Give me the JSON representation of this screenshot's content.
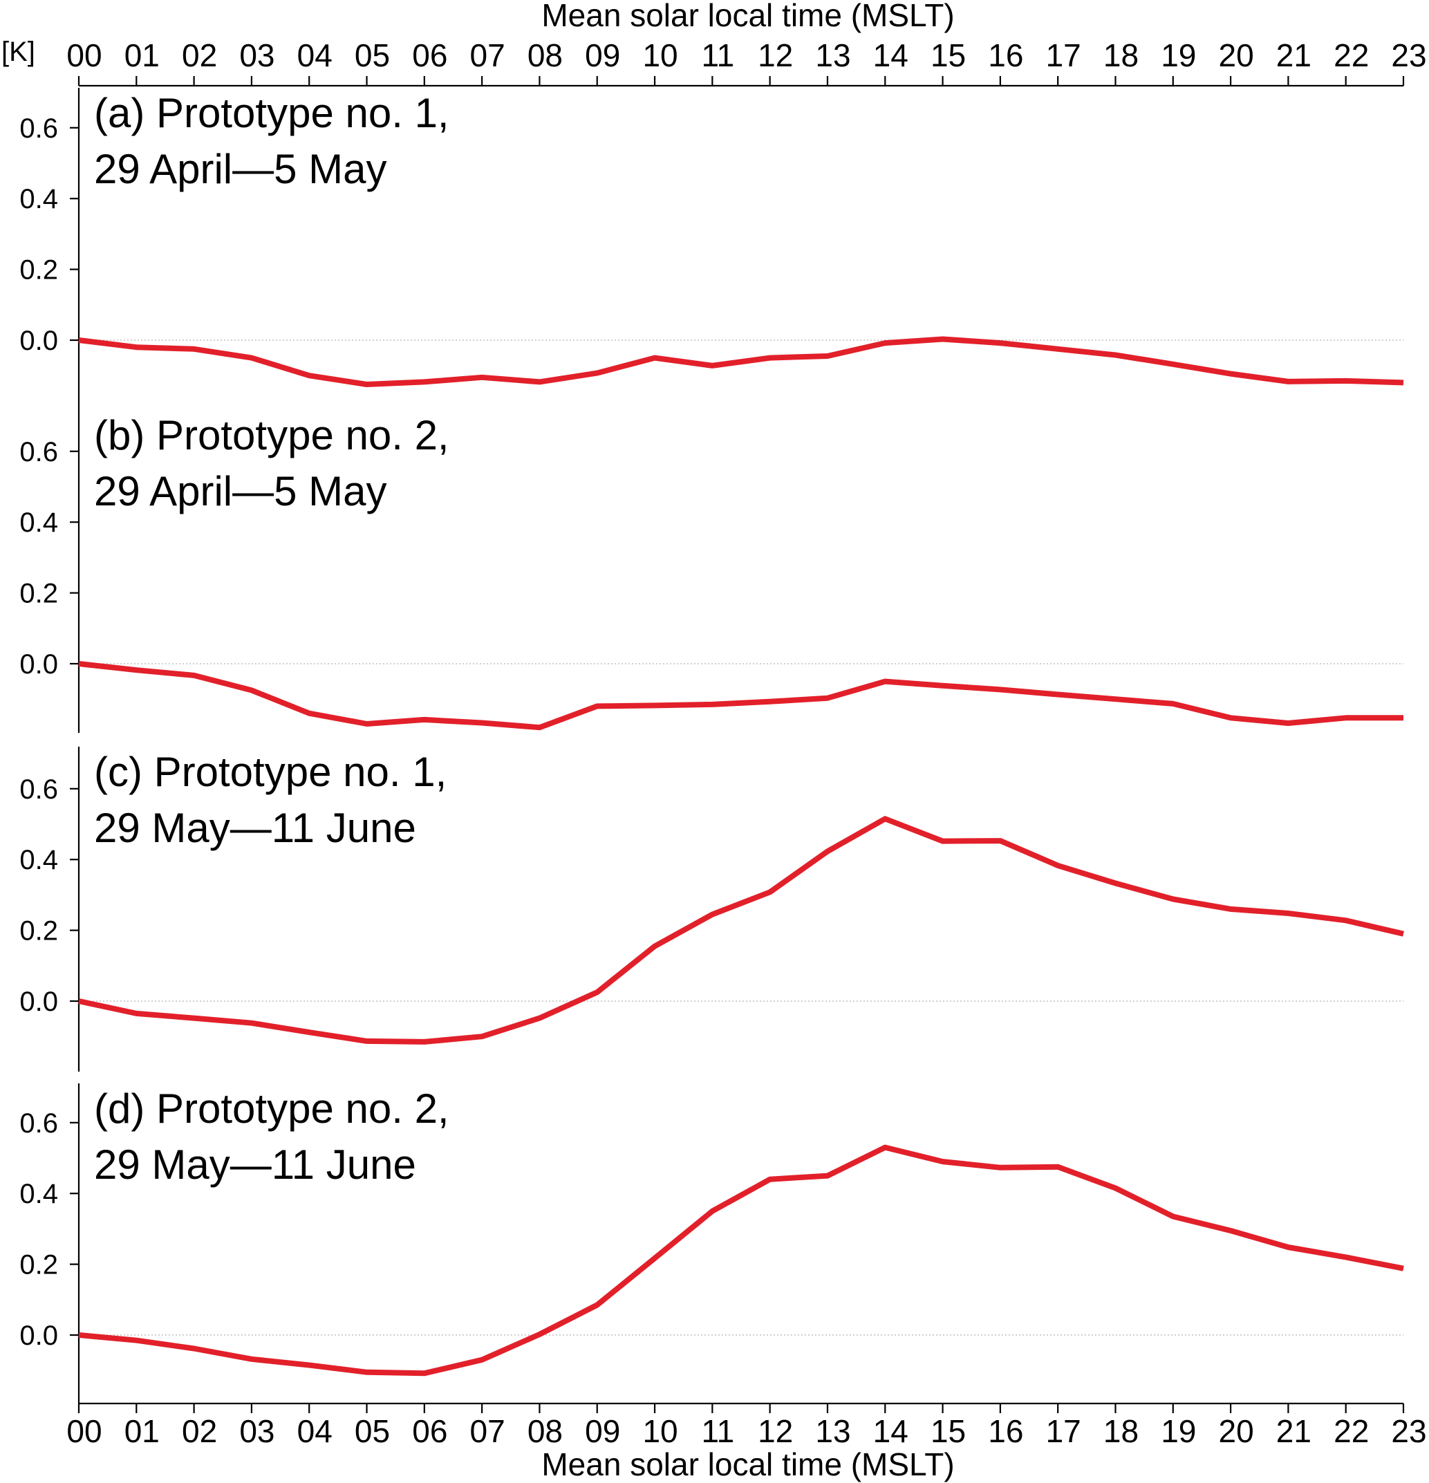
{
  "chart_data": {
    "type": "line",
    "top_axis_title": "Mean solar local time (MSLT)",
    "bottom_axis_title": "Mean solar local time (MSLT)",
    "y_unit": "[K]",
    "x_tick_labels": [
      "00",
      "01",
      "02",
      "03",
      "04",
      "05",
      "06",
      "07",
      "08",
      "09",
      "10",
      "11",
      "12",
      "13",
      "14",
      "15",
      "16",
      "17",
      "18",
      "19",
      "20",
      "21",
      "22",
      "23"
    ],
    "x": [
      0,
      1,
      2,
      3,
      4,
      5,
      6,
      7,
      8,
      9,
      10,
      11,
      12,
      13,
      14,
      15,
      16,
      17,
      18,
      19,
      20,
      21,
      22,
      23
    ],
    "xlim": [
      0,
      23
    ],
    "ylim": [
      -0.2,
      0.65
    ],
    "y_ticks": [
      0.0,
      0.2,
      0.4,
      0.6
    ],
    "y_tick_labels": [
      "0.0",
      "0.2",
      "0.4",
      "0.6"
    ],
    "line_color": "#e2202a",
    "zero_line_color": "#bfbfbf",
    "panels": [
      {
        "title_line1": "(a) Prototype no.  1,",
        "title_line2": "29 April—5 May",
        "values": [
          0.0,
          -0.02,
          -0.025,
          -0.05,
          -0.1,
          -0.125,
          -0.118,
          -0.105,
          -0.118,
          -0.093,
          -0.05,
          -0.072,
          -0.05,
          -0.045,
          -0.008,
          0.003,
          -0.008,
          -0.025,
          -0.042,
          -0.068,
          -0.095,
          -0.117,
          -0.115,
          -0.12
        ]
      },
      {
        "title_line1": "(b) Prototype no. 2,",
        "title_line2": "29 April—5 May",
        "values": [
          0.0,
          -0.018,
          -0.033,
          -0.075,
          -0.14,
          -0.17,
          -0.158,
          -0.167,
          -0.18,
          -0.12,
          -0.118,
          -0.115,
          -0.107,
          -0.097,
          -0.05,
          -0.062,
          -0.073,
          -0.087,
          -0.1,
          -0.113,
          -0.153,
          -0.168,
          -0.153,
          -0.153
        ]
      },
      {
        "title_line1": "(c) Prototype no.  1,",
        "title_line2": "29 May—11 June",
        "values": [
          0.0,
          -0.035,
          -0.048,
          -0.062,
          -0.088,
          -0.113,
          -0.115,
          -0.1,
          -0.048,
          0.025,
          0.155,
          0.245,
          0.308,
          0.423,
          0.515,
          0.452,
          0.453,
          0.383,
          0.333,
          0.288,
          0.26,
          0.248,
          0.228,
          0.19
        ]
      },
      {
        "title_line1": "(d) Prototype no. 2,",
        "title_line2": "29 May—11 June",
        "values": [
          0.0,
          -0.015,
          -0.038,
          -0.068,
          -0.085,
          -0.105,
          -0.108,
          -0.07,
          0.002,
          0.085,
          0.217,
          0.35,
          0.44,
          0.45,
          0.53,
          0.49,
          0.473,
          0.475,
          0.415,
          0.335,
          0.295,
          0.248,
          0.22,
          0.188
        ]
      }
    ]
  }
}
